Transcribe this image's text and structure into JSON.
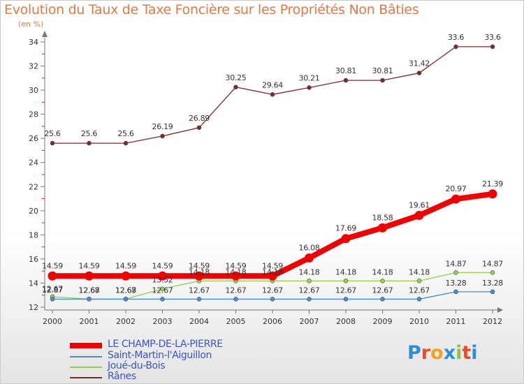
{
  "title": "Evolution du Taux de Taxe Foncière sur les Propriétés Non Bâties",
  "unit_label": "(en %)",
  "logo": {
    "text": "Proxiti",
    "colors": [
      "#2f8fd6",
      "#e84c2a",
      "#f3a21b",
      "#2f8fd6",
      "#8bc34a",
      "#e84c2a",
      "#2f8fd6"
    ]
  },
  "chart_data": {
    "type": "line",
    "title": "Evolution du Taux de Taxe Foncière sur les Propriétés Non Bâties",
    "ylabel": "(en %)",
    "xlabel": "",
    "categories": [
      "2000",
      "2001",
      "2002",
      "2003",
      "2004",
      "2005",
      "2006",
      "2007",
      "2008",
      "2009",
      "2010",
      "2011",
      "2012"
    ],
    "ylim": [
      12,
      34
    ],
    "yticks": [
      12,
      14,
      16,
      18,
      20,
      22,
      24,
      26,
      28,
      30,
      32,
      34
    ],
    "grid": false,
    "legend_placement": "bottom-left",
    "series": [
      {
        "name": "LE CHAMP-DE-LA-PIERRE",
        "color": "#ee0000",
        "values": [
          14.59,
          14.59,
          14.59,
          14.59,
          14.59,
          14.59,
          14.59,
          16.08,
          17.69,
          18.58,
          19.61,
          20.97,
          21.39
        ],
        "labels": [
          "14.59",
          "14.59",
          "14.59",
          "14.59",
          "14.59",
          "14.59",
          "14.59",
          "16.08",
          "17.69",
          "18.58",
          "19.61",
          "20.97",
          "21.39"
        ]
      },
      {
        "name": "Saint-Martin-l'Aiguillon",
        "color": "#4a8ec8",
        "values": [
          12.67,
          12.67,
          12.67,
          12.67,
          12.67,
          12.67,
          12.67,
          12.67,
          12.67,
          12.67,
          12.67,
          13.28,
          13.28
        ],
        "labels": [
          "12.67",
          "12.67",
          "12.67",
          "12.67",
          "12.67",
          "12.67",
          "12.67",
          "12.67",
          "12.67",
          "12.67",
          "12.67",
          "13.28",
          "13.28"
        ]
      },
      {
        "name": "Joué-du-Bois",
        "color": "#8fd14f",
        "values": [
          12.87,
          12.68,
          12.68,
          13.52,
          14.18,
          14.18,
          14.18,
          14.18,
          14.18,
          14.18,
          14.18,
          14.87,
          14.87
        ],
        "labels": [
          "12.87",
          "12.68",
          "12.68",
          "13.52",
          "14.18",
          "14.18",
          "14.18",
          "14.18",
          "14.18",
          "14.18",
          "14.18",
          "14.87",
          "14.87"
        ]
      },
      {
        "name": "Rânes",
        "color": "#7a2a2a",
        "values": [
          25.6,
          25.6,
          25.6,
          26.19,
          26.89,
          30.25,
          29.64,
          30.21,
          30.81,
          30.81,
          31.42,
          33.6,
          33.6
        ],
        "labels": [
          "25.6",
          "25.6",
          "25.6",
          "26.19",
          "26.89",
          "30.25",
          "29.64",
          "30.21",
          "30.81",
          "30.81",
          "31.42",
          "33.6",
          "33.6"
        ]
      }
    ]
  }
}
